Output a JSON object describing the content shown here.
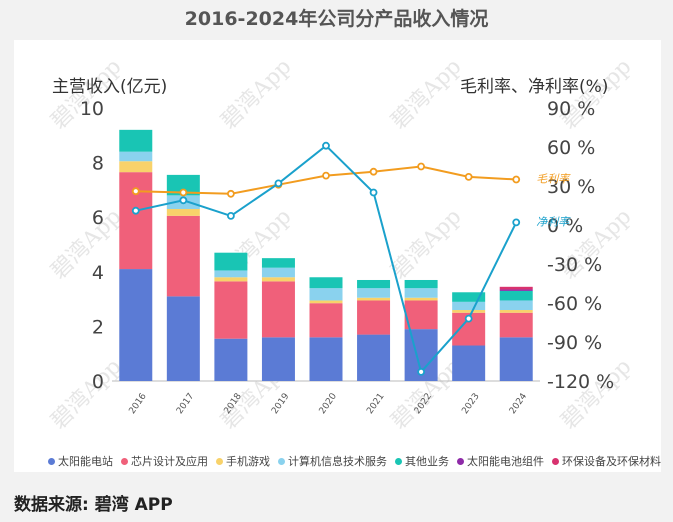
{
  "title": "2016-2024年公司分产品收入情况",
  "source": "数据来源: 碧湾 APP",
  "watermark": "碧湾App",
  "chart_data": {
    "type": "bar",
    "stacked": true,
    "categories": [
      "2016",
      "2017",
      "2018",
      "2019",
      "2020",
      "2021",
      "2022",
      "2023",
      "2024"
    ],
    "ylabel_left": "主营收入(亿元)",
    "ylabel_right": "毛利率、净利率(%)",
    "ylim_left": [
      0,
      10
    ],
    "yticks_left": [
      "0",
      "2",
      "4",
      "6",
      "8",
      "10"
    ],
    "ylim_right": [
      -120,
      90
    ],
    "yticks_right": [
      "-120 %",
      "-90 %",
      "-60 %",
      "-30 %",
      "0 %",
      "30 %",
      "60 %",
      "90 %"
    ],
    "series": [
      {
        "name": "太阳能电站",
        "color": "#5b7bd5",
        "values": [
          4.1,
          3.1,
          1.55,
          1.6,
          1.6,
          1.7,
          1.9,
          1.3,
          1.6
        ]
      },
      {
        "name": "芯片设计及应用",
        "color": "#f0607a",
        "values": [
          3.55,
          2.95,
          2.1,
          2.05,
          1.25,
          1.25,
          1.05,
          1.2,
          0.9
        ]
      },
      {
        "name": "手机游戏",
        "color": "#f8d26a",
        "values": [
          0.4,
          0.25,
          0.15,
          0.15,
          0.1,
          0.1,
          0.1,
          0.1,
          0.1
        ]
      },
      {
        "name": "计算机信息技术服务",
        "color": "#8ad2ee",
        "values": [
          0.35,
          0.5,
          0.25,
          0.35,
          0.45,
          0.35,
          0.35,
          0.3,
          0.35
        ]
      },
      {
        "name": "其他业务",
        "color": "#19c5b4",
        "values": [
          0.8,
          0.75,
          0.65,
          0.35,
          0.4,
          0.3,
          0.3,
          0.35,
          0.35
        ]
      },
      {
        "name": "太阳能电池组件",
        "color": "#8e2aa8",
        "values": [
          0,
          0,
          0,
          0,
          0,
          0,
          0,
          0,
          0.05
        ]
      },
      {
        "name": "环保设备及环保材料",
        "color": "#d8326f",
        "values": [
          0,
          0,
          0,
          0,
          0,
          0,
          0,
          0,
          0.1
        ]
      }
    ],
    "lines": [
      {
        "name": "毛利率",
        "color": "#f29c1f",
        "values": [
          26,
          25,
          24,
          31,
          38,
          41,
          45,
          37,
          35
        ]
      },
      {
        "name": "净利率",
        "color": "#1aa1cc",
        "values": [
          11,
          19,
          7,
          32,
          61,
          25,
          -113,
          -72,
          2
        ]
      }
    ]
  }
}
